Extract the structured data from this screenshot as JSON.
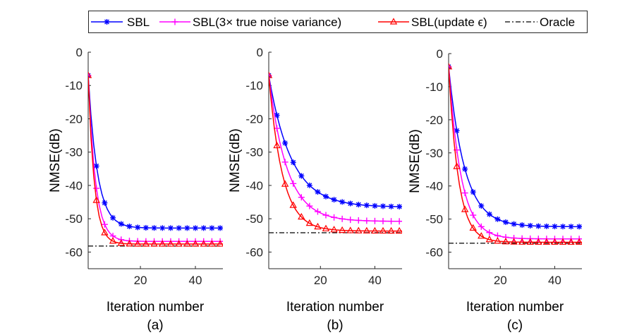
{
  "legend": {
    "entries": [
      {
        "label": "SBL",
        "color": "#0000ff",
        "marker": "asterisk"
      },
      {
        "label": "SBL(3× true noise variance)",
        "color": "#ff00ff",
        "marker": "plus"
      },
      {
        "label": "SBL(update ϵ)",
        "color": "#ff0000",
        "marker": "triangle"
      },
      {
        "label": "Oracle",
        "color": "#000000",
        "marker": "dashdot"
      }
    ]
  },
  "chart_data": [
    {
      "type": "line",
      "caption": "(a)",
      "xlabel": "Iteration number",
      "ylabel": "NMSE(dB)",
      "xlim": [
        1,
        50
      ],
      "ylim": [
        -65,
        0
      ],
      "xticks": [
        "20",
        "40"
      ],
      "yticks": [
        "0",
        "-10",
        "-20",
        "-30",
        "-40",
        "-50",
        "-60"
      ],
      "params": {
        "start": -7,
        "sbl": {
          "final": -52.8,
          "k": 0.3
        },
        "sbl3x": {
          "final": -56.8,
          "k": 0.38
        },
        "upd": {
          "final": -57.6,
          "k": 0.45
        },
        "oracle": -58.2
      }
    },
    {
      "type": "line",
      "caption": "(b)",
      "xlabel": "Iteration number",
      "ylabel": "NMSE(dB)",
      "xlim": [
        1,
        50
      ],
      "ylim": [
        -65,
        0
      ],
      "xticks": [
        "20",
        "40"
      ],
      "yticks": [
        "0",
        "-10",
        "-20",
        "-30",
        "-40",
        "-50",
        "-60"
      ],
      "params": {
        "start": -7,
        "sbl": {
          "final": -46.5,
          "k": 0.12
        },
        "sbl3x": {
          "final": -50.8,
          "k": 0.15
        },
        "upd": {
          "final": -53.7,
          "k": 0.2
        },
        "oracle": -54.2
      }
    },
    {
      "type": "line",
      "caption": "(c)",
      "xlabel": "Iteration number",
      "ylabel": "NMSE(dB)",
      "xlim": [
        1,
        50
      ],
      "ylim": [
        -65,
        0
      ],
      "xticks": [
        "20",
        "40"
      ],
      "yticks": [
        "0",
        "-10",
        "-20",
        "-30",
        "-40",
        "-50",
        "-60"
      ],
      "params": {
        "start": -4,
        "sbl": {
          "final": -52.3,
          "k": 0.17
        },
        "sbl3x": {
          "final": -56,
          "k": 0.22
        },
        "upd": {
          "final": -57,
          "k": 0.28
        },
        "oracle": -57.3
      }
    }
  ]
}
